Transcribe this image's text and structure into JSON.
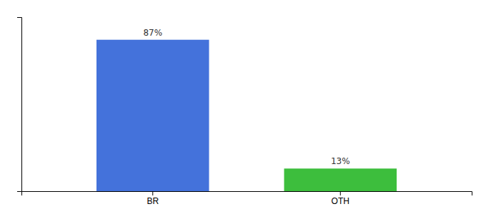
{
  "chart_data": {
    "type": "bar",
    "categories": [
      "BR",
      "OTH"
    ],
    "values": [
      87,
      13
    ],
    "value_labels": [
      "87%",
      "13%"
    ],
    "colors": [
      "#4472db",
      "#3dbe3d"
    ],
    "ylim": [
      0,
      100
    ],
    "data_labels": true,
    "tick_labels": "x",
    "grid": false
  }
}
